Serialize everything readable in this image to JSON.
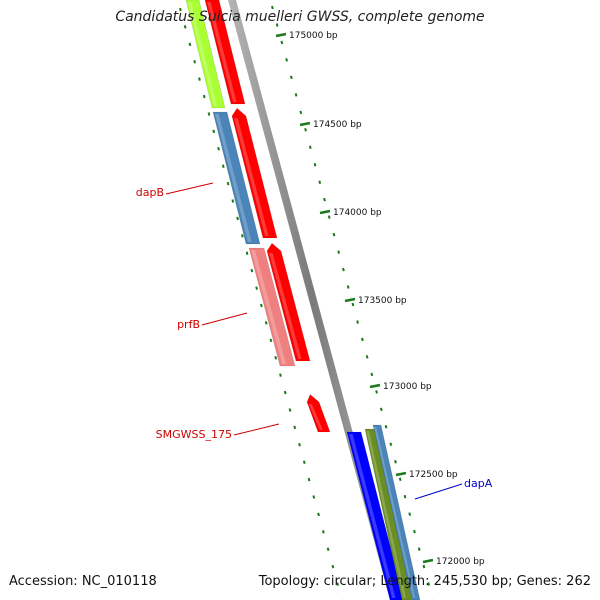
{
  "title": "Candidatus Sulcia muelleri GWSS, complete genome",
  "accession": "Accession: NC_010118",
  "summary": "Topology: circular; Length: 245,530 bp; Genes: 262",
  "colors": {
    "backbone": "#8a8a8a",
    "tick": "#1a7a1a",
    "label_red": "#cc0000",
    "label_blue": "#0000cc",
    "cds_red": "#ff0000",
    "cds_steelblue": "#4a84b8",
    "cds_pink": "#f08080",
    "cds_lime": "#aaff33",
    "cds_blue": "#0000ff",
    "cds_olive": "#6b8e23"
  },
  "ticks": [
    {
      "label": "175000 bp"
    },
    {
      "label": "174500 bp"
    },
    {
      "label": "174000 bp"
    },
    {
      "label": "173500 bp"
    },
    {
      "label": "173000 bp"
    },
    {
      "label": "172500 bp"
    },
    {
      "label": "172000 bp"
    }
  ],
  "gene_labels": [
    {
      "text": "dapB",
      "color": "#cc0000"
    },
    {
      "text": "prfB",
      "color": "#cc0000"
    },
    {
      "text": "SMGWSS_175",
      "color": "#cc0000"
    },
    {
      "text": "dapA",
      "color": "#0000cc"
    }
  ]
}
